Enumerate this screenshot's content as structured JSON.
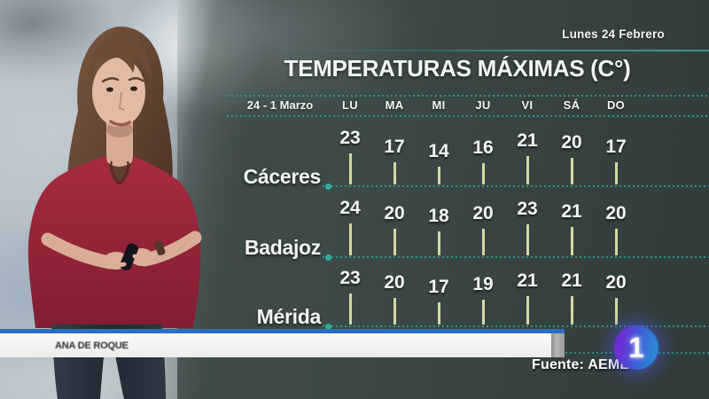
{
  "header": {
    "broadcast_date": "Lunes 24 Febrero"
  },
  "chart_data": {
    "type": "table",
    "title": "TEMPERATURAS MÁXIMAS (C°)",
    "period": "24 - 1 Marzo",
    "unit": "C°",
    "categories": [
      "LU",
      "MA",
      "MI",
      "JU",
      "VI",
      "SÁ",
      "DO"
    ],
    "series": [
      {
        "name": "Cáceres",
        "values": [
          23,
          17,
          14,
          16,
          21,
          20,
          17
        ]
      },
      {
        "name": "Badajoz",
        "values": [
          24,
          20,
          18,
          20,
          23,
          21,
          20
        ]
      },
      {
        "name": "Mérida",
        "values": [
          23,
          20,
          17,
          19,
          21,
          21,
          20
        ]
      }
    ],
    "source": "Fuente: AEMET",
    "legend_position": "none",
    "grid": "dotted-teal-row-baselines",
    "tick_style": "vertical khaki ticks, height proportional to value"
  },
  "footer": {
    "presenter_name": "ANA DE ROQUE",
    "source": "Fuente: AEMET",
    "channel_logo": "1"
  },
  "colors": {
    "panel": "#3d4a47",
    "teal_line": "#2e958c",
    "teal_dot": "#2fb3a6",
    "tick": "#dce2a8",
    "banner_blue": "#2b6ec4",
    "banner_white": "#f4f4f2",
    "blouse_red": "#a12a40",
    "logo_purple": "#6b2fd6",
    "logo_blue": "#2b86d4"
  }
}
